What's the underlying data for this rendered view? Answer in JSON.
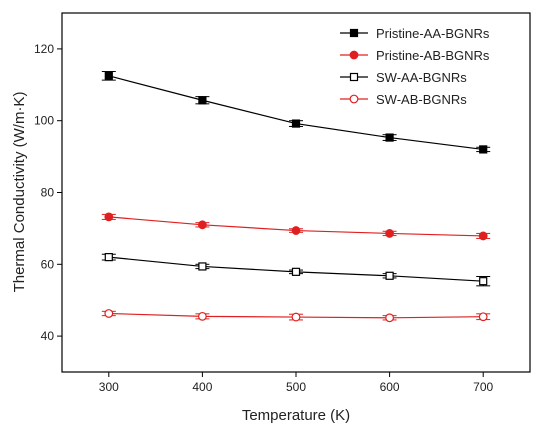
{
  "chart_data": {
    "type": "line",
    "title": "",
    "xlabel": "Temperature (K)",
    "ylabel": "Thermal Conductivity (W/m·K)",
    "xlim": [
      250,
      750
    ],
    "ylim": [
      30,
      130
    ],
    "xticks": [
      "300",
      "400",
      "500",
      "600",
      "700"
    ],
    "yticks": [
      "40",
      "60",
      "80",
      "100",
      "120"
    ],
    "x": [
      300,
      400,
      500,
      600,
      700
    ],
    "legend_position": "top-right",
    "grid": false,
    "series": [
      {
        "name": "Pristine-AA-BGNRs",
        "color": "#000000",
        "marker": "square",
        "filled": true,
        "values": [
          112.5,
          105.7,
          99.2,
          95.3,
          92.0
        ],
        "errors": [
          1.2,
          1.0,
          0.8,
          0.8,
          0.6
        ]
      },
      {
        "name": "Pristine-AB-BGNRs",
        "color": "#e02020",
        "marker": "circle",
        "filled": true,
        "values": [
          73.2,
          71.0,
          69.4,
          68.6,
          67.9
        ],
        "errors": [
          0.7,
          0.6,
          0.5,
          0.6,
          0.7
        ]
      },
      {
        "name": "SW-AA-BGNRs",
        "color": "#000000",
        "marker": "square",
        "filled": false,
        "values": [
          62.0,
          59.4,
          57.9,
          56.8,
          55.3
        ],
        "errors": [
          0.8,
          0.6,
          0.5,
          0.6,
          1.3
        ]
      },
      {
        "name": "SW-AB-BGNRs",
        "color": "#e02020",
        "marker": "circle",
        "filled": false,
        "values": [
          46.3,
          45.5,
          45.3,
          45.1,
          45.4
        ],
        "errors": [
          0.6,
          0.7,
          0.8,
          0.6,
          0.8
        ]
      }
    ]
  }
}
